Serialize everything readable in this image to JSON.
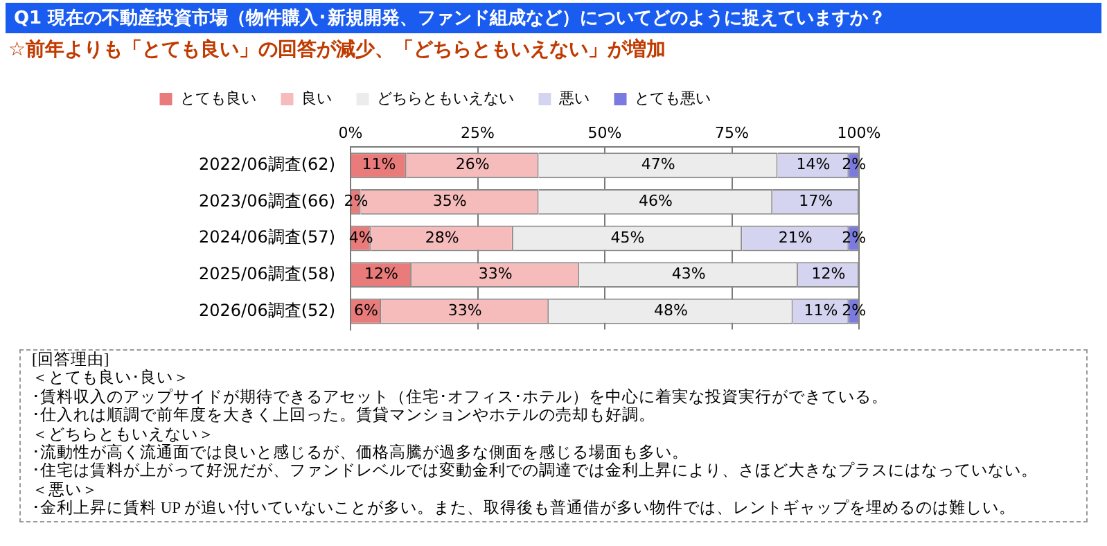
{
  "chart_data": {
    "type": "bar",
    "orientation": "horizontal",
    "stacked": true,
    "title": "Q1 現在の不動産投資市場（物件購入･新規開発、ファンド組成など）についてどのように捉えていますか？",
    "subtitle": "☆前年よりも「とても良い」の回答が減少、「どちらともいえない」が増加",
    "categories": [
      "2022/06調査(62)",
      "2023/06調査(66)",
      "2024/06調査(57)",
      "2025/06調査(58)",
      "2026/06調査(52)"
    ],
    "series": [
      {
        "name": "とても良い",
        "color": "#ea7b7b",
        "values": [
          11,
          2,
          4,
          12,
          6
        ],
        "value_labels": [
          "11%",
          "2%",
          "4%",
          "12%",
          "6%"
        ]
      },
      {
        "name": "良い",
        "color": "#f6bcbc",
        "values": [
          26,
          35,
          28,
          33,
          33
        ],
        "value_labels": [
          "26%",
          "35%",
          "28%",
          "33%",
          "33%"
        ]
      },
      {
        "name": "どちらともいえない",
        "color": "#ececec",
        "values": [
          47,
          46,
          45,
          43,
          48
        ],
        "value_labels": [
          "47%",
          "46%",
          "45%",
          "43%",
          "48%"
        ]
      },
      {
        "name": "悪い",
        "color": "#d4d4f0",
        "values": [
          14,
          17,
          21,
          12,
          11
        ],
        "value_labels": [
          "14%",
          "17%",
          "21%",
          "12%",
          "11%"
        ]
      },
      {
        "name": "とても悪い",
        "color": "#7a7ae0",
        "values": [
          2,
          null,
          2,
          null,
          2
        ],
        "value_labels": [
          "2%",
          null,
          "2%",
          null,
          "2%"
        ]
      }
    ],
    "xlim": [
      0,
      100
    ],
    "xticks": [
      {
        "value": 0,
        "label": "0%"
      },
      {
        "value": 25,
        "label": "25%"
      },
      {
        "value": 50,
        "label": "50%"
      },
      {
        "value": 75,
        "label": "75%"
      },
      {
        "value": 100,
        "label": "100%"
      }
    ],
    "grid": "x",
    "legend": "top",
    "annotations": [
      "[回答理由]",
      "＜とても良い･良い＞",
      "･賃料収入のアップサイドが期待できるアセット（住宅･オフィス･ホテル）を中心に着実な投資実行ができている。",
      "･仕入れは順調で前年度を大きく上回った。賃貸マンションやホテルの売却も好調。",
      "＜どちらともいえない＞",
      "･流動性が高く流通面では良いと感じるが、価格高騰が過多な側面を感じる場面も多い。",
      "･住宅は賃料が上がって好況だが、ファンドレベルでは変動金利での調達では金利上昇により、さほど大きなプラスにはなっていない。",
      "＜悪い＞",
      "･金利上昇に賃料 UP が追い付いていないことが多い。また、取得後も普通借が多い物件では、レントギャップを埋めるのは難しい。"
    ]
  }
}
